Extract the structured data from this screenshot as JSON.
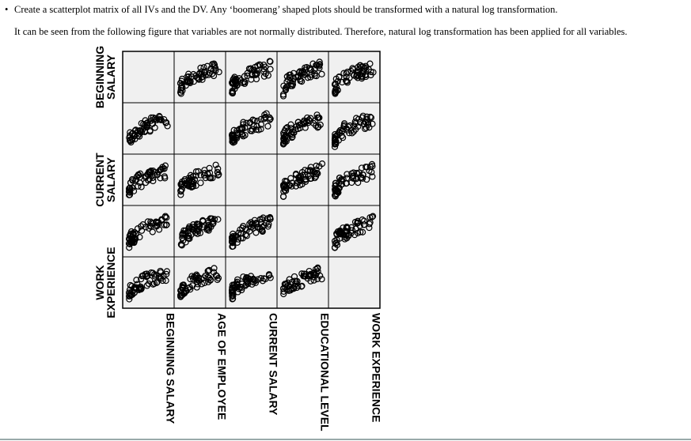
{
  "document": {
    "bullet": "Create a scatterplot matrix of all IVs and the DV. Any ‘boomerang’ shaped plots should be transformed with a natural log transformation.",
    "paragraph": "It can be seen from the following figure that variables are not normally distributed. Therefore, natural log transformation has been applied for all variables.",
    "figure": {
      "row_labels": [
        [
          "BEGINNING",
          "SALARY"
        ],
        [
          "CURRENT",
          "SALARY"
        ],
        [
          "WORK",
          "EXPERIENCE"
        ]
      ],
      "column_labels": [
        "BEGINNING SALARY",
        "AGE OF EMPLOYEE",
        "CURRENT SALARY",
        "EDUCATIONAL LEVEL",
        "WORK EXPERIENCE"
      ]
    }
  }
}
